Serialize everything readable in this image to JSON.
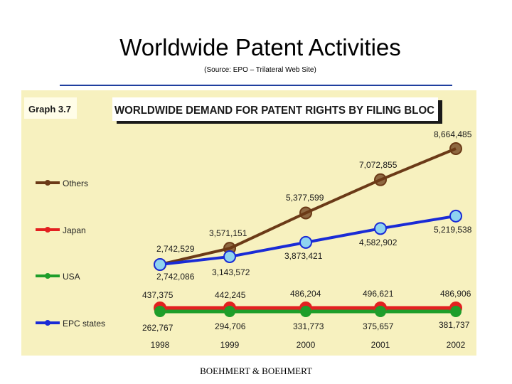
{
  "slide": {
    "title": "Worldwide Patent Activities",
    "subtitle": "(Source: EPO – Trilateral Web Site)",
    "footer": "BOEHMERT & BOEHMERT"
  },
  "chart_data": {
    "type": "line",
    "graph_label": "Graph 3.7",
    "title": "WORLDWIDE DEMAND FOR PATENT RIGHTS BY FILING BLOC",
    "categories": [
      "1998",
      "1999",
      "2000",
      "2001",
      "2002"
    ],
    "series": [
      {
        "name": "Others",
        "color": "#6b3a17",
        "values": [
          2742529,
          3571151,
          5377599,
          7072855,
          8664485
        ],
        "labels": [
          "2,742,529",
          "3,571,151",
          "5,377,599",
          "7,072,855",
          "8,664,485"
        ]
      },
      {
        "name": "Japan",
        "color": "#e32020",
        "values": [
          437375,
          442245,
          486204,
          496621,
          486906
        ],
        "labels": [
          "437,375",
          "442,245",
          "486,204",
          "496,621",
          "486,906"
        ]
      },
      {
        "name": "USA",
        "color": "#1e9e2a",
        "values": [
          262767,
          294706,
          331773,
          375657,
          381737
        ],
        "labels": [
          "262,767",
          "294,706",
          "331,773",
          "375,657",
          "381,737"
        ]
      },
      {
        "name": "EPC states",
        "color": "#1a2bd6",
        "values": [
          2742086,
          3143572,
          3873421,
          4582902,
          5219538
        ],
        "labels": [
          "2,742,086",
          "3,143,572",
          "3,873,421",
          "4,582,902",
          "5,219,538"
        ]
      }
    ],
    "legend_position": "left",
    "grid": false
  }
}
